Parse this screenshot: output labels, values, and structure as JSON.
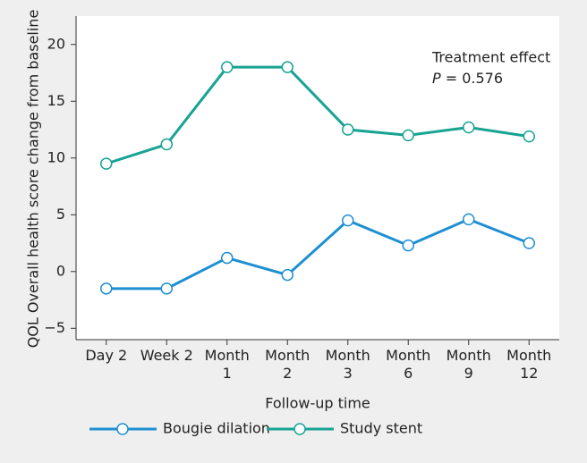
{
  "chart_data": {
    "type": "line",
    "categories": [
      "Day 2",
      "Week 2",
      "Month\n1",
      "Month\n2",
      "Month\n3",
      "Month\n6",
      "Month\n9",
      "Month\n12"
    ],
    "series": [
      {
        "name": "Bougie dilation",
        "color": "#1f8fd2",
        "values": [
          -1.5,
          -1.5,
          1.2,
          -0.3,
          4.5,
          2.3,
          4.6,
          2.5
        ]
      },
      {
        "name": "Study stent",
        "color": "#17a393",
        "values": [
          9.5,
          11.2,
          18,
          18,
          12.5,
          12,
          12.7,
          11.9
        ]
      }
    ],
    "ylim": [
      -6,
      22.5
    ],
    "yticks": [
      {
        "value": -5,
        "label": "−5"
      },
      0,
      5,
      10,
      15,
      20
    ],
    "y_label": "QOL Overall health score change from baseline",
    "x_label": "Follow-up time",
    "annotation": [
      "Treatment effect",
      "P = 0.576"
    ],
    "legend": "bottom"
  }
}
